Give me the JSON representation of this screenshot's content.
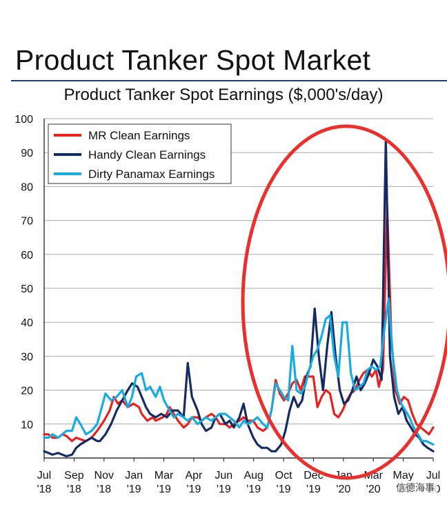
{
  "header": {
    "title": "Product Tanker Spot Market"
  },
  "chart_data": {
    "type": "line",
    "title": "Product Tanker Spot Earnings ($,000's/day)",
    "xlabel": "",
    "ylabel": "",
    "ylim": [
      0,
      100
    ],
    "yticks": [
      10,
      20,
      30,
      40,
      50,
      60,
      70,
      80,
      90,
      100
    ],
    "grid": true,
    "legend_position": "top-left",
    "x_tick_labels": [
      {
        "month": "Jul",
        "year": "'18"
      },
      {
        "month": "Sep",
        "year": "'18"
      },
      {
        "month": "Nov",
        "year": "'18"
      },
      {
        "month": "Jan",
        "year": "'19"
      },
      {
        "month": "Mar",
        "year": "'19"
      },
      {
        "month": "Apr",
        "year": "'19"
      },
      {
        "month": "Jun",
        "year": "'19"
      },
      {
        "month": "Aug",
        "year": "'19"
      },
      {
        "month": "Oct",
        "year": "'19"
      },
      {
        "month": "Dec",
        "year": "'19"
      },
      {
        "month": "Jan",
        "year": "'20"
      },
      {
        "month": "Mar",
        "year": "'20"
      },
      {
        "month": "May",
        "year": "'20"
      },
      {
        "month": "Jul",
        "year": "'20"
      }
    ],
    "series": [
      {
        "name": "MR Clean Earnings",
        "color": "#e8211f",
        "points": [
          [
            0,
            7
          ],
          [
            0.3,
            7
          ],
          [
            0.6,
            6
          ],
          [
            1,
            6
          ],
          [
            1.3,
            7
          ],
          [
            1.6,
            6.5
          ],
          [
            2,
            5
          ],
          [
            2.3,
            6
          ],
          [
            2.6,
            5.5
          ],
          [
            3,
            5
          ],
          [
            3.4,
            6
          ],
          [
            3.8,
            8
          ],
          [
            4.3,
            11
          ],
          [
            4.7,
            14
          ],
          [
            5,
            18
          ],
          [
            5.3,
            16
          ],
          [
            5.6,
            17
          ],
          [
            6,
            15
          ],
          [
            6.4,
            16
          ],
          [
            6.8,
            15
          ],
          [
            7,
            13
          ],
          [
            7.4,
            11
          ],
          [
            7.8,
            12
          ],
          [
            8,
            11
          ],
          [
            8.5,
            12
          ],
          [
            8.8,
            13
          ],
          [
            9,
            15
          ],
          [
            9.3,
            13
          ],
          [
            9.6,
            11
          ],
          [
            10,
            9
          ],
          [
            10.3,
            10
          ],
          [
            10.6,
            12
          ],
          [
            11,
            12
          ],
          [
            11.3,
            11
          ],
          [
            11.6,
            12
          ],
          [
            12,
            13
          ],
          [
            12.3,
            12
          ],
          [
            12.6,
            10
          ],
          [
            13,
            10
          ],
          [
            13.3,
            9
          ],
          [
            13.6,
            10
          ],
          [
            14,
            11
          ],
          [
            14.3,
            12
          ],
          [
            14.6,
            11
          ],
          [
            15,
            11
          ],
          [
            15.3,
            9
          ],
          [
            15.7,
            8
          ],
          [
            16,
            9
          ],
          [
            16.3,
            14
          ],
          [
            16.6,
            23
          ],
          [
            16.9,
            19
          ],
          [
            17.2,
            17
          ],
          [
            17.5,
            19
          ],
          [
            17.8,
            22
          ],
          [
            18.1,
            23
          ],
          [
            18.4,
            20
          ],
          [
            18.7,
            24
          ],
          [
            19,
            24
          ],
          [
            19.3,
            24
          ],
          [
            19.6,
            15
          ],
          [
            19.9,
            18
          ],
          [
            20.2,
            20
          ],
          [
            20.5,
            19
          ],
          [
            20.8,
            13
          ],
          [
            21.1,
            12
          ],
          [
            21.4,
            14
          ],
          [
            21.7,
            17
          ],
          [
            22,
            19
          ],
          [
            22.3,
            20
          ],
          [
            22.6,
            23
          ],
          [
            22.9,
            25
          ],
          [
            23.2,
            26
          ],
          [
            23.5,
            24
          ],
          [
            23.8,
            26
          ],
          [
            24,
            21
          ],
          [
            24.3,
            26
          ],
          [
            24.6,
            74
          ],
          [
            24.9,
            35
          ],
          [
            25.2,
            20
          ],
          [
            25.5,
            16
          ],
          [
            25.8,
            18
          ],
          [
            26.1,
            17
          ],
          [
            26.4,
            13
          ],
          [
            26.7,
            10
          ],
          [
            27,
            9
          ],
          [
            27.3,
            8
          ],
          [
            27.6,
            7
          ],
          [
            27.9,
            9
          ]
        ]
      },
      {
        "name": "Handy Clean Earnings",
        "color": "#132a62",
        "points": [
          [
            0,
            2
          ],
          [
            0.3,
            1.5
          ],
          [
            0.6,
            1
          ],
          [
            1,
            1.5
          ],
          [
            1.3,
            1
          ],
          [
            1.6,
            0.5
          ],
          [
            2,
            1
          ],
          [
            2.3,
            3
          ],
          [
            2.6,
            4
          ],
          [
            3,
            5
          ],
          [
            3.4,
            6
          ],
          [
            3.8,
            5
          ],
          [
            4,
            5
          ],
          [
            4.4,
            7
          ],
          [
            4.8,
            10
          ],
          [
            5.2,
            14
          ],
          [
            5.6,
            17
          ],
          [
            6,
            20
          ],
          [
            6.3,
            22
          ],
          [
            6.7,
            21
          ],
          [
            7,
            18
          ],
          [
            7.3,
            15
          ],
          [
            7.6,
            13
          ],
          [
            8,
            12
          ],
          [
            8.4,
            13
          ],
          [
            8.8,
            12
          ],
          [
            9.2,
            14
          ],
          [
            9.6,
            14
          ],
          [
            10,
            12
          ],
          [
            10.3,
            28
          ],
          [
            10.6,
            18
          ],
          [
            11,
            14
          ],
          [
            11.3,
            10
          ],
          [
            11.6,
            8
          ],
          [
            12,
            9
          ],
          [
            12.3,
            12
          ],
          [
            12.6,
            13
          ],
          [
            13,
            10
          ],
          [
            13.3,
            11
          ],
          [
            13.6,
            9
          ],
          [
            14,
            12
          ],
          [
            14.3,
            16
          ],
          [
            14.6,
            10
          ],
          [
            15,
            6
          ],
          [
            15.3,
            4
          ],
          [
            15.6,
            3
          ],
          [
            16,
            3
          ],
          [
            16.3,
            2
          ],
          [
            16.6,
            2
          ],
          [
            17,
            4
          ],
          [
            17.3,
            8
          ],
          [
            17.6,
            14
          ],
          [
            17.9,
            18
          ],
          [
            18.2,
            15
          ],
          [
            18.5,
            17
          ],
          [
            18.8,
            24
          ],
          [
            19.1,
            27
          ],
          [
            19.4,
            44
          ],
          [
            19.7,
            30
          ],
          [
            20,
            20
          ],
          [
            20.3,
            33
          ],
          [
            20.6,
            43
          ],
          [
            20.9,
            30
          ],
          [
            21.2,
            20
          ],
          [
            21.5,
            16
          ],
          [
            21.8,
            17
          ],
          [
            22.1,
            20
          ],
          [
            22.4,
            24
          ],
          [
            22.7,
            20
          ],
          [
            23,
            22
          ],
          [
            23.3,
            25
          ],
          [
            23.6,
            29
          ],
          [
            23.9,
            27
          ],
          [
            24.2,
            23
          ],
          [
            24.5,
            94
          ],
          [
            24.8,
            30
          ],
          [
            25.1,
            18
          ],
          [
            25.4,
            13
          ],
          [
            25.7,
            15
          ],
          [
            26,
            11
          ],
          [
            26.3,
            9
          ],
          [
            26.6,
            7
          ],
          [
            26.9,
            6
          ],
          [
            27.2,
            4
          ],
          [
            27.5,
            3
          ],
          [
            27.9,
            2
          ]
        ]
      },
      {
        "name": "Dirty Panamax Earnings",
        "color": "#17abe0",
        "points": [
          [
            0,
            6
          ],
          [
            0.3,
            6
          ],
          [
            0.6,
            7
          ],
          [
            1,
            6
          ],
          [
            1.3,
            7
          ],
          [
            1.6,
            8
          ],
          [
            2,
            8
          ],
          [
            2.3,
            12
          ],
          [
            2.6,
            10
          ],
          [
            3,
            7
          ],
          [
            3.4,
            8
          ],
          [
            3.8,
            10
          ],
          [
            4,
            13
          ],
          [
            4.4,
            19
          ],
          [
            4.8,
            17
          ],
          [
            5.2,
            18
          ],
          [
            5.6,
            20
          ],
          [
            6,
            15
          ],
          [
            6.3,
            18
          ],
          [
            6.6,
            24
          ],
          [
            7,
            25
          ],
          [
            7.3,
            20
          ],
          [
            7.6,
            21
          ],
          [
            8,
            18
          ],
          [
            8.3,
            21
          ],
          [
            8.6,
            17
          ],
          [
            9,
            14
          ],
          [
            9.3,
            12
          ],
          [
            9.6,
            13
          ],
          [
            10,
            12
          ],
          [
            10.3,
            11
          ],
          [
            10.6,
            12
          ],
          [
            11,
            10
          ],
          [
            11.3,
            11
          ],
          [
            11.6,
            12
          ],
          [
            12,
            11
          ],
          [
            12.3,
            12
          ],
          [
            12.6,
            13
          ],
          [
            13,
            13
          ],
          [
            13.3,
            12
          ],
          [
            13.6,
            11
          ],
          [
            14,
            9
          ],
          [
            14.3,
            11
          ],
          [
            14.6,
            10
          ],
          [
            15,
            11
          ],
          [
            15.3,
            12
          ],
          [
            15.7,
            10
          ],
          [
            16,
            9
          ],
          [
            16.3,
            14
          ],
          [
            16.6,
            22
          ],
          [
            16.9,
            20
          ],
          [
            17.2,
            18
          ],
          [
            17.5,
            17
          ],
          [
            17.8,
            33
          ],
          [
            18.1,
            20
          ],
          [
            18.4,
            19
          ],
          [
            18.7,
            21
          ],
          [
            19,
            26
          ],
          [
            19.3,
            30
          ],
          [
            19.6,
            32
          ],
          [
            19.9,
            36
          ],
          [
            20.2,
            41
          ],
          [
            20.5,
            42
          ],
          [
            20.8,
            30
          ],
          [
            21.1,
            24
          ],
          [
            21.4,
            40
          ],
          [
            21.7,
            40
          ],
          [
            22,
            25
          ],
          [
            22.3,
            20
          ],
          [
            22.6,
            21
          ],
          [
            22.9,
            22
          ],
          [
            23.2,
            26
          ],
          [
            23.5,
            27
          ],
          [
            23.8,
            26
          ],
          [
            24.1,
            27
          ],
          [
            24.4,
            38
          ],
          [
            24.7,
            47
          ],
          [
            25,
            30
          ],
          [
            25.3,
            20
          ],
          [
            25.6,
            16
          ],
          [
            25.9,
            14
          ],
          [
            26.2,
            12
          ],
          [
            26.5,
            9
          ],
          [
            26.8,
            7
          ],
          [
            27.1,
            5
          ],
          [
            27.4,
            5
          ],
          [
            27.9,
            4
          ]
        ]
      }
    ]
  },
  "annotation": {
    "color": "#e9302d"
  },
  "watermark": {
    "text": "信德海事"
  }
}
